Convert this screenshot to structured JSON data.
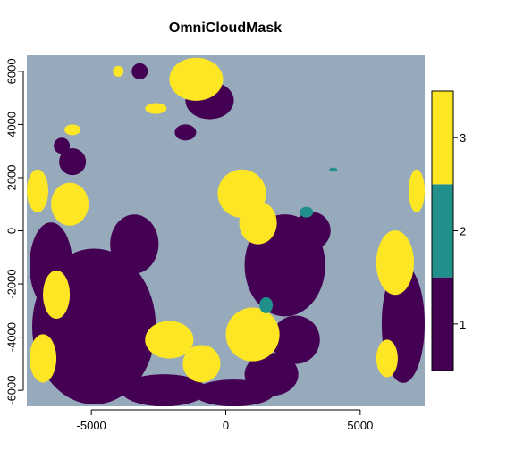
{
  "chart_data": {
    "type": "heatmap",
    "title": "OmniCloudMask",
    "xlim": [
      -7400,
      7400
    ],
    "ylim": [
      -6600,
      6600
    ],
    "x_ticks": [
      {
        "value": -5000,
        "label": "-5000"
      },
      {
        "value": 0,
        "label": "0"
      },
      {
        "value": 5000,
        "label": "5000"
      }
    ],
    "y_ticks": [
      {
        "value": -6000,
        "label": "-6000"
      },
      {
        "value": -4000,
        "label": "-4000"
      },
      {
        "value": -2000,
        "label": "-2000"
      },
      {
        "value": 0,
        "label": "0"
      },
      {
        "value": 2000,
        "label": "2000"
      },
      {
        "value": 4000,
        "label": "4000"
      },
      {
        "value": 6000,
        "label": "6000"
      }
    ],
    "background_color": "#97AABC",
    "legend": {
      "placement": "right",
      "entries": [
        {
          "value": 1,
          "label": "1",
          "color": "#440154"
        },
        {
          "value": 2,
          "label": "2",
          "color": "#21908C"
        },
        {
          "value": 3,
          "label": "3",
          "color": "#FDE725"
        }
      ]
    },
    "regions": [
      {
        "class": 1,
        "cx": -4900,
        "cy": -3600,
        "rx": 2300,
        "ry": 2900
      },
      {
        "class": 1,
        "cx": -6500,
        "cy": -1300,
        "rx": 800,
        "ry": 1600
      },
      {
        "class": 1,
        "cx": -3400,
        "cy": -500,
        "rx": 900,
        "ry": 1100
      },
      {
        "class": 1,
        "cx": -2300,
        "cy": -6000,
        "rx": 1600,
        "ry": 600
      },
      {
        "class": 1,
        "cx": 300,
        "cy": -6100,
        "rx": 1500,
        "ry": 500
      },
      {
        "class": 1,
        "cx": 1700,
        "cy": -5400,
        "rx": 1000,
        "ry": 800
      },
      {
        "class": 1,
        "cx": 2600,
        "cy": -4100,
        "rx": 900,
        "ry": 900
      },
      {
        "class": 1,
        "cx": 2200,
        "cy": -1300,
        "rx": 1500,
        "ry": 1900
      },
      {
        "class": 1,
        "cx": 3200,
        "cy": 0,
        "rx": 700,
        "ry": 700
      },
      {
        "class": 1,
        "cx": 6600,
        "cy": -3500,
        "rx": 800,
        "ry": 2200
      },
      {
        "class": 1,
        "cx": -600,
        "cy": 4900,
        "rx": 900,
        "ry": 700
      },
      {
        "class": 1,
        "cx": -5700,
        "cy": 2600,
        "rx": 500,
        "ry": 500
      },
      {
        "class": 1,
        "cx": -6100,
        "cy": 3200,
        "rx": 300,
        "ry": 300
      },
      {
        "class": 1,
        "cx": -3200,
        "cy": 6000,
        "rx": 300,
        "ry": 300
      },
      {
        "class": 1,
        "cx": -1500,
        "cy": 3700,
        "rx": 400,
        "ry": 300
      },
      {
        "class": 3,
        "cx": -5800,
        "cy": 1000,
        "rx": 700,
        "ry": 800
      },
      {
        "class": 3,
        "cx": -7000,
        "cy": 1500,
        "rx": 400,
        "ry": 800
      },
      {
        "class": 3,
        "cx": -6300,
        "cy": -2400,
        "rx": 500,
        "ry": 900
      },
      {
        "class": 3,
        "cx": -6800,
        "cy": -4800,
        "rx": 500,
        "ry": 900
      },
      {
        "class": 3,
        "cx": -2100,
        "cy": -4100,
        "rx": 900,
        "ry": 700
      },
      {
        "class": 3,
        "cx": -900,
        "cy": -5000,
        "rx": 700,
        "ry": 700
      },
      {
        "class": 3,
        "cx": 1000,
        "cy": -3900,
        "rx": 1000,
        "ry": 1000
      },
      {
        "class": 3,
        "cx": 600,
        "cy": 1400,
        "rx": 900,
        "ry": 900
      },
      {
        "class": 3,
        "cx": 1200,
        "cy": 300,
        "rx": 700,
        "ry": 800
      },
      {
        "class": 3,
        "cx": -1100,
        "cy": 5700,
        "rx": 1000,
        "ry": 800
      },
      {
        "class": 3,
        "cx": 6300,
        "cy": -1200,
        "rx": 700,
        "ry": 1200
      },
      {
        "class": 3,
        "cx": 7100,
        "cy": 1500,
        "rx": 300,
        "ry": 800
      },
      {
        "class": 3,
        "cx": -5700,
        "cy": 3800,
        "rx": 300,
        "ry": 200
      },
      {
        "class": 3,
        "cx": -2600,
        "cy": 4600,
        "rx": 400,
        "ry": 200
      },
      {
        "class": 3,
        "cx": -4000,
        "cy": 6000,
        "rx": 200,
        "ry": 200
      },
      {
        "class": 3,
        "cx": 6000,
        "cy": -4800,
        "rx": 400,
        "ry": 700
      },
      {
        "class": 2,
        "cx": 3000,
        "cy": 700,
        "rx": 250,
        "ry": 200
      },
      {
        "class": 2,
        "cx": 1500,
        "cy": -2800,
        "rx": 250,
        "ry": 300
      },
      {
        "class": 2,
        "cx": 4000,
        "cy": 2300,
        "rx": 150,
        "ry": 80
      }
    ]
  }
}
